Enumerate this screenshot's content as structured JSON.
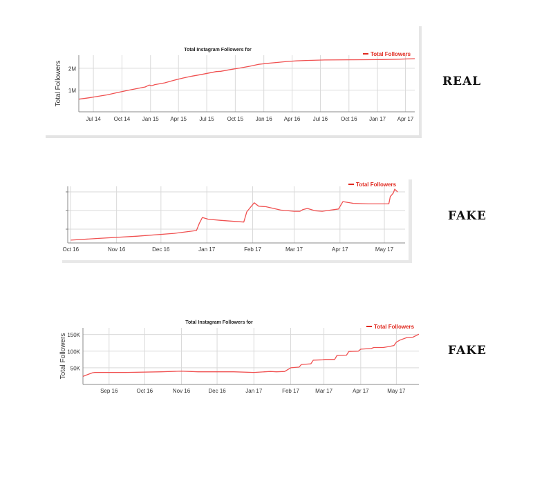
{
  "verdicts": [
    "REAL",
    "FAKE",
    "FAKE"
  ],
  "colors": {
    "series": "#f05050",
    "legend_text": "#e0281e",
    "grid": "#d9d9d9",
    "axis_text": "#333333"
  },
  "chart_data": [
    {
      "type": "line",
      "title": "Total Instagram Followers for",
      "ylabel": "Total Followers",
      "xlabel": "",
      "legend": "top-right",
      "grid": true,
      "xticks": [
        "Jul 14",
        "Oct 14",
        "Jan 15",
        "Apr 15",
        "Jul 15",
        "Oct 15",
        "Jan 16",
        "Apr 16",
        "Jul 16",
        "Oct 16",
        "Jan 17",
        "Apr 17"
      ],
      "yticks": [
        "1M",
        "2M"
      ],
      "ylim": [
        0,
        2600000
      ],
      "series": [
        {
          "name": "Total Followers",
          "x": [
            "2014-05-15",
            "2014-06-15",
            "2014-07-15",
            "2014-08-15",
            "2014-09-15",
            "2014-10-15",
            "2014-11-15",
            "2014-12-15",
            "2014-12-28",
            "2015-01-05",
            "2015-01-15",
            "2015-02-15",
            "2015-03-15",
            "2015-04-15",
            "2015-05-15",
            "2015-06-15",
            "2015-07-15",
            "2015-08-01",
            "2015-08-15",
            "2015-09-15",
            "2015-10-15",
            "2015-11-15",
            "2015-12-15",
            "2016-01-15",
            "2016-02-15",
            "2016-03-15",
            "2016-04-15",
            "2016-05-15",
            "2016-07-15",
            "2016-10-15",
            "2017-01-15",
            "2017-03-15",
            "2017-05-01"
          ],
          "y": [
            580000,
            640000,
            710000,
            780000,
            880000,
            970000,
            1060000,
            1140000,
            1230000,
            1200000,
            1250000,
            1330000,
            1440000,
            1550000,
            1640000,
            1720000,
            1800000,
            1850000,
            1860000,
            1940000,
            2010000,
            2090000,
            2180000,
            2230000,
            2270000,
            2310000,
            2340000,
            2360000,
            2380000,
            2390000,
            2400000,
            2420000,
            2440000
          ]
        }
      ]
    },
    {
      "type": "line",
      "title": "",
      "ylabel": "",
      "xlabel": "",
      "legend": "top-right",
      "grid": true,
      "xticks": [
        "Oct 16",
        "Nov 16",
        "Dec 16",
        "Jan 17",
        "Feb 17",
        "Mar 17",
        "Apr 17",
        "May 17"
      ],
      "yticks": [
        "",
        "",
        ""
      ],
      "series": [
        {
          "name": "Total Followers",
          "x": [
            "2016-10-01",
            "2016-10-20",
            "2016-11-15",
            "2016-12-10",
            "2016-12-25",
            "2016-12-27",
            "2016-12-29",
            "2017-01-02",
            "2017-01-10",
            "2017-01-20",
            "2017-01-26",
            "2017-01-28",
            "2017-02-02",
            "2017-02-05",
            "2017-02-10",
            "2017-02-20",
            "2017-03-01",
            "2017-03-05",
            "2017-03-07",
            "2017-03-10",
            "2017-03-15",
            "2017-03-20",
            "2017-03-31",
            "2017-04-03",
            "2017-04-10",
            "2017-04-20",
            "2017-04-30",
            "2017-05-04",
            "2017-05-05",
            "2017-05-07",
            "2017-05-08",
            "2017-05-10"
          ],
          "y": [
            0.05,
            0.08,
            0.12,
            0.17,
            0.22,
            0.35,
            0.45,
            0.42,
            0.4,
            0.38,
            0.37,
            0.55,
            0.71,
            0.65,
            0.64,
            0.58,
            0.56,
            0.56,
            0.59,
            0.61,
            0.57,
            0.56,
            0.6,
            0.73,
            0.7,
            0.69,
            0.69,
            0.69,
            0.82,
            0.88,
            0.95,
            0.9
          ]
        }
      ]
    },
    {
      "type": "line",
      "title": "Total Instagram Followers for",
      "ylabel": "Total Followers",
      "xlabel": "",
      "legend": "top-right",
      "grid": true,
      "xticks": [
        "Sep 16",
        "Oct 16",
        "Nov 16",
        "Dec 16",
        "Jan 17",
        "Feb 17",
        "Mar 17",
        "Apr 17",
        "May 17"
      ],
      "yticks": [
        "50K",
        "100K",
        "150K"
      ],
      "ylim": [
        0,
        170000
      ],
      "series": [
        {
          "name": "Total Followers",
          "x": [
            "2016-08-10",
            "2016-08-15",
            "2016-08-18",
            "2016-08-20",
            "2016-09-15",
            "2016-10-15",
            "2016-11-01",
            "2016-11-15",
            "2016-12-15",
            "2017-01-01",
            "2017-01-10",
            "2017-01-15",
            "2017-01-20",
            "2017-01-27",
            "2017-02-01",
            "2017-02-08",
            "2017-02-10",
            "2017-02-18",
            "2017-02-20",
            "2017-02-28",
            "2017-03-02",
            "2017-03-10",
            "2017-03-12",
            "2017-03-20",
            "2017-03-22",
            "2017-03-30",
            "2017-04-01",
            "2017-04-10",
            "2017-04-12",
            "2017-04-20",
            "2017-04-25",
            "2017-04-29",
            "2017-05-01",
            "2017-05-04",
            "2017-05-10",
            "2017-05-15",
            "2017-05-20"
          ],
          "y": [
            24000,
            31000,
            35000,
            36000,
            36000,
            38000,
            40000,
            38000,
            38000,
            36000,
            38000,
            39000,
            38000,
            39000,
            50000,
            52000,
            60000,
            62000,
            73000,
            74000,
            75000,
            75000,
            87000,
            88000,
            99000,
            100000,
            106000,
            108000,
            111000,
            111000,
            114000,
            117000,
            127000,
            133000,
            141000,
            142000,
            151000
          ]
        }
      ]
    }
  ]
}
